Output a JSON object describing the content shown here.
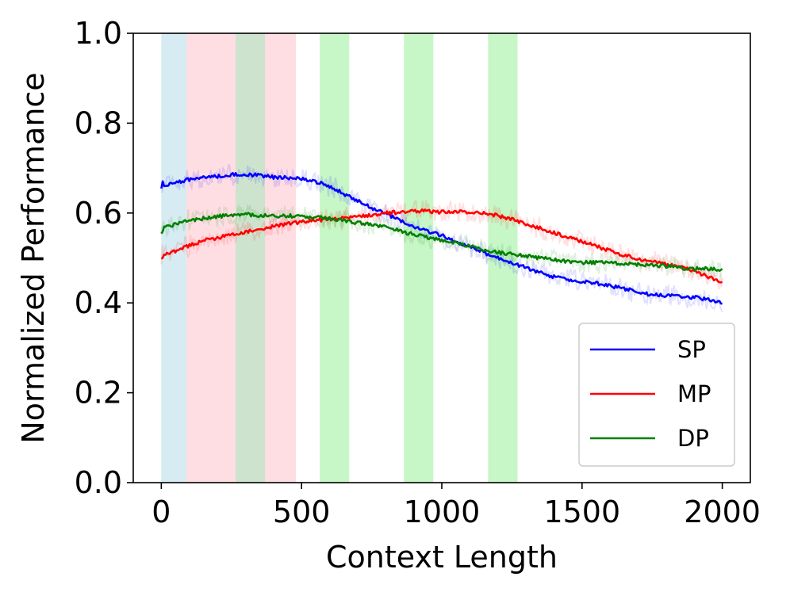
{
  "chart_data": {
    "type": "line",
    "title": "",
    "xlabel": "Context Length",
    "ylabel": "Normalized Performance",
    "xlim": [
      -100,
      2100
    ],
    "ylim": [
      0.0,
      1.0
    ],
    "xticks": [
      0,
      500,
      1000,
      1500,
      2000
    ],
    "yticks": [
      0.0,
      0.2,
      0.4,
      0.6,
      0.8,
      1.0
    ],
    "xtick_labels": [
      "0",
      "500",
      "1000",
      "1500",
      "2000"
    ],
    "ytick_labels": [
      "0.0",
      "0.2",
      "0.4",
      "0.6",
      "0.8",
      "1.0"
    ],
    "grid": false,
    "legend_position": "lower-right",
    "shaded_regions": [
      {
        "x0": 0,
        "x1": 90,
        "color": "#add8e6",
        "opacity": 0.5
      },
      {
        "x0": 90,
        "x1": 265,
        "color": "#ffb6c1",
        "opacity": 0.45
      },
      {
        "x0": 265,
        "x1": 370,
        "color": "#90c090",
        "opacity": 0.45
      },
      {
        "x0": 370,
        "x1": 480,
        "color": "#ffb6c1",
        "opacity": 0.45
      },
      {
        "x0": 565,
        "x1": 670,
        "color": "#90ee90",
        "opacity": 0.5
      },
      {
        "x0": 865,
        "x1": 970,
        "color": "#90ee90",
        "opacity": 0.5
      },
      {
        "x0": 1165,
        "x1": 1270,
        "color": "#90ee90",
        "opacity": 0.5
      }
    ],
    "series": [
      {
        "name": "SP",
        "color": "#0000ff",
        "x": [
          0,
          50,
          100,
          150,
          200,
          250,
          300,
          350,
          400,
          450,
          500,
          550,
          600,
          650,
          700,
          750,
          800,
          850,
          900,
          950,
          1000,
          1050,
          1100,
          1150,
          1200,
          1250,
          1300,
          1350,
          1400,
          1450,
          1500,
          1550,
          1600,
          1650,
          1700,
          1750,
          1800,
          1850,
          1900,
          1950,
          2000
        ],
        "y": [
          0.66,
          0.668,
          0.675,
          0.678,
          0.682,
          0.685,
          0.686,
          0.684,
          0.68,
          0.678,
          0.676,
          0.67,
          0.66,
          0.643,
          0.628,
          0.612,
          0.598,
          0.585,
          0.57,
          0.56,
          0.55,
          0.535,
          0.525,
          0.512,
          0.5,
          0.49,
          0.478,
          0.467,
          0.458,
          0.452,
          0.448,
          0.444,
          0.438,
          0.432,
          0.424,
          0.418,
          0.416,
          0.414,
          0.412,
          0.408,
          0.402
        ]
      },
      {
        "name": "MP",
        "color": "#ff0000",
        "x": [
          0,
          50,
          100,
          150,
          200,
          250,
          300,
          350,
          400,
          450,
          500,
          550,
          600,
          650,
          700,
          750,
          800,
          850,
          900,
          950,
          1000,
          1050,
          1100,
          1150,
          1200,
          1250,
          1300,
          1350,
          1400,
          1450,
          1500,
          1550,
          1600,
          1650,
          1700,
          1750,
          1800,
          1850,
          1900,
          1950,
          2000
        ],
        "y": [
          0.505,
          0.515,
          0.528,
          0.538,
          0.545,
          0.552,
          0.558,
          0.564,
          0.57,
          0.576,
          0.58,
          0.584,
          0.586,
          0.588,
          0.592,
          0.596,
          0.6,
          0.602,
          0.604,
          0.604,
          0.602,
          0.604,
          0.602,
          0.6,
          0.594,
          0.586,
          0.576,
          0.566,
          0.556,
          0.546,
          0.536,
          0.526,
          0.516,
          0.506,
          0.498,
          0.492,
          0.486,
          0.48,
          0.47,
          0.458,
          0.446
        ]
      },
      {
        "name": "DP",
        "color": "#008000",
        "x": [
          0,
          50,
          100,
          150,
          200,
          250,
          300,
          350,
          400,
          450,
          500,
          550,
          600,
          650,
          700,
          750,
          800,
          850,
          900,
          950,
          1000,
          1050,
          1100,
          1150,
          1200,
          1250,
          1300,
          1350,
          1400,
          1450,
          1500,
          1550,
          1600,
          1650,
          1700,
          1750,
          1800,
          1850,
          1900,
          1950,
          2000
        ],
        "y": [
          0.565,
          0.575,
          0.583,
          0.588,
          0.592,
          0.595,
          0.597,
          0.595,
          0.593,
          0.594,
          0.592,
          0.59,
          0.588,
          0.582,
          0.578,
          0.574,
          0.568,
          0.56,
          0.552,
          0.546,
          0.54,
          0.534,
          0.526,
          0.518,
          0.512,
          0.508,
          0.504,
          0.5,
          0.496,
          0.492,
          0.49,
          0.49,
          0.489,
          0.488,
          0.486,
          0.484,
          0.482,
          0.478,
          0.476,
          0.476,
          0.474
        ]
      }
    ]
  }
}
